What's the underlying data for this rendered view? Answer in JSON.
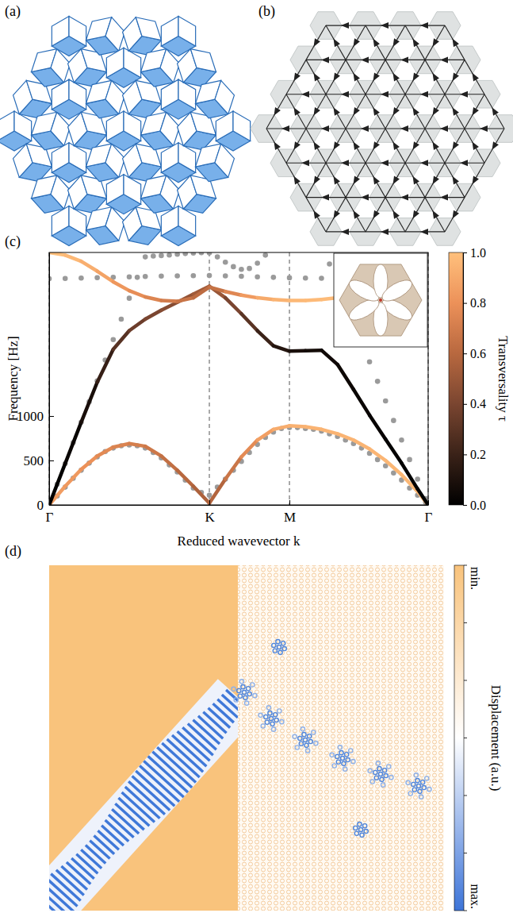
{
  "panel_labels": [
    "(a)",
    "(b)",
    "(c)",
    "(d)"
  ],
  "chart_data": {
    "type": "line",
    "xlabel": "Reduced wavevector k",
    "ylabel": "Frequency [Hz]",
    "xlim": [
      0,
      2.366
    ],
    "xticks": [
      {
        "value": 0,
        "label": "Γ"
      },
      {
        "value": 1,
        "label": "K"
      },
      {
        "value": 1.5,
        "label": "M"
      },
      {
        "value": 2.366,
        "label": "Γ"
      }
    ],
    "ylim": [
      0,
      2840
    ],
    "yticks": [
      0,
      500,
      1000
    ],
    "grid": "x",
    "colorbar": {
      "label": "Transversality τ",
      "range": [
        0,
        1
      ],
      "ticks": [
        {
          "value": 0,
          "label": "0.0"
        },
        {
          "value": 0.2,
          "label": "0.2"
        },
        {
          "value": 0.4,
          "label": "0.4"
        },
        {
          "value": 0.6,
          "label": "0.6"
        },
        {
          "value": 0.8,
          "label": "0.8"
        },
        {
          "value": 1,
          "label": "1.0"
        }
      ]
    },
    "series": [
      {
        "type": "scatter",
        "color": "#9a9a9a",
        "marker": "circle",
        "x": [
          0,
          0.05,
          0.1,
          0.15,
          0.2,
          0.25,
          0.3,
          0.35,
          0.4,
          0.45,
          0.5,
          0.55,
          0.6,
          0.65,
          0.7,
          0.75,
          0.8,
          0.85,
          0.9,
          0.95,
          1.0,
          1.05,
          1.1,
          1.15,
          1.2,
          1.25,
          1.3,
          1.35,
          1.4,
          1.45,
          1.5,
          1.55,
          1.6,
          1.65,
          1.7,
          1.75,
          1.8,
          1.85,
          1.9,
          1.95,
          2.0,
          2.05,
          2.1,
          2.15,
          2.2,
          2.25,
          2.3,
          2.35
        ],
        "values": [
          0,
          100,
          200,
          300,
          390,
          470,
          540,
          600,
          640,
          665,
          675,
          665,
          640,
          590,
          530,
          450,
          370,
          280,
          190,
          140,
          110,
          200,
          290,
          390,
          490,
          590,
          680,
          760,
          820,
          860,
          870,
          870,
          860,
          850,
          830,
          800,
          770,
          730,
          690,
          640,
          580,
          510,
          440,
          360,
          280,
          190,
          110,
          30
        ]
      },
      {
        "type": "scatter",
        "color": "#9a9a9a",
        "marker": "circle",
        "x": [
          0,
          0.05,
          0.1,
          0.15,
          0.2,
          0.25,
          0.3,
          0.35,
          0.4,
          0.45,
          0.5,
          0.55,
          0.6
        ],
        "values": [
          0,
          232,
          465,
          700,
          930,
          1160,
          1395,
          1630,
          1860,
          2090,
          2325,
          2560,
          2790
        ]
      },
      {
        "type": "scatter",
        "color": "#9a9a9a",
        "marker": "circle",
        "x": [
          1.75,
          1.8,
          1.85,
          1.9,
          1.95,
          2.0,
          2.05,
          2.1,
          2.15,
          2.2,
          2.25,
          2.3,
          2.35
        ],
        "values": [
          2710,
          2490,
          2270,
          2050,
          1830,
          1610,
          1390,
          1170,
          950,
          730,
          510,
          290,
          70
        ]
      },
      {
        "type": "scatter",
        "color": "#9a9a9a",
        "marker": "circle",
        "x": [
          0,
          0.1,
          0.2,
          0.3,
          0.4,
          0.5,
          0.6,
          0.7,
          0.8,
          0.9,
          1.0,
          1.1,
          1.2,
          1.3,
          1.4,
          1.5,
          1.6,
          1.7,
          1.8,
          1.9,
          2.0,
          2.1,
          2.2,
          2.3
        ],
        "values": [
          2545,
          2548,
          2552,
          2556,
          2560,
          2565,
          2570,
          2574,
          2577,
          2579,
          2580,
          2577,
          2572,
          2566,
          2560,
          2555,
          2552,
          2550,
          2548,
          2547,
          2546,
          2545,
          2545,
          2545
        ]
      },
      {
        "type": "scatter",
        "color": "#9a9a9a",
        "marker": "circle",
        "x": [
          0.65,
          0.7,
          0.75,
          0.8,
          0.85,
          0.9,
          0.95,
          1.0,
          1.05,
          1.1,
          1.15,
          1.2,
          1.25,
          1.3,
          1.35
        ],
        "values": [
          2800,
          2805,
          2812,
          2820,
          2828,
          2834,
          2838,
          2836,
          2790,
          2730,
          2680,
          2650,
          2660,
          2720,
          2810
        ]
      },
      {
        "type": "line",
        "x": [
          0,
          0.1,
          0.2,
          0.3,
          0.4,
          0.5,
          0.6,
          0.7,
          0.8,
          0.9,
          1.0,
          1.1,
          1.2,
          1.3,
          1.4,
          1.5,
          1.6,
          1.7,
          1.8,
          1.9,
          2.0,
          2.1,
          2.2,
          2.3,
          2.366
        ],
        "values": [
          0,
          210,
          400,
          550,
          650,
          690,
          660,
          550,
          390,
          210,
          20,
          290,
          540,
          730,
          850,
          890,
          880,
          850,
          800,
          730,
          630,
          500,
          340,
          150,
          0
        ],
        "transversality": [
          0.85,
          0.85,
          0.82,
          0.78,
          0.75,
          0.72,
          0.7,
          0.66,
          0.62,
          0.58,
          0.55,
          0.62,
          0.72,
          0.82,
          0.9,
          0.93,
          0.94,
          0.95,
          0.95,
          0.95,
          0.95,
          0.96,
          0.96,
          0.96,
          0.96
        ]
      },
      {
        "type": "line",
        "x": [
          0,
          0.1,
          0.2,
          0.3,
          0.4,
          0.5,
          0.6,
          0.7,
          0.8,
          0.9,
          1.0,
          1.1,
          1.2,
          1.3,
          1.4,
          1.5,
          1.6,
          1.7,
          1.8,
          1.9,
          2.0,
          2.1,
          2.2,
          2.3,
          2.366
        ],
        "values": [
          0,
          465,
          930,
          1380,
          1750,
          1960,
          2090,
          2190,
          2280,
          2370,
          2460,
          2330,
          2150,
          1960,
          1790,
          1730,
          1735,
          1740,
          1580,
          1300,
          1010,
          740,
          470,
          180,
          0
        ],
        "transversality": [
          0,
          0.02,
          0.05,
          0.12,
          0.25,
          0.33,
          0.38,
          0.42,
          0.46,
          0.5,
          0.55,
          0.45,
          0.35,
          0.25,
          0.15,
          0.1,
          0.08,
          0.06,
          0.05,
          0.04,
          0.03,
          0.02,
          0.01,
          0,
          0
        ]
      },
      {
        "type": "line",
        "x": [
          0,
          0.1,
          0.2,
          0.3,
          0.4,
          0.5,
          0.6,
          0.7,
          0.8,
          0.9,
          1.0,
          1.1,
          1.2,
          1.3,
          1.4,
          1.5,
          1.6,
          1.7,
          1.8
        ],
        "values": [
          2840,
          2810,
          2740,
          2630,
          2510,
          2410,
          2340,
          2300,
          2290,
          2330,
          2450,
          2400,
          2360,
          2330,
          2310,
          2300,
          2300,
          2310,
          2330
        ],
        "transversality": [
          1,
          0.98,
          0.95,
          0.9,
          0.85,
          0.8,
          0.76,
          0.72,
          0.68,
          0.64,
          0.6,
          0.7,
          0.8,
          0.88,
          0.93,
          0.96,
          0.97,
          0.98,
          0.98
        ]
      }
    ]
  },
  "displacement_map": {
    "colorbar": {
      "label": "Displacement (a.u.)",
      "min": "min.",
      "max": "max."
    }
  }
}
